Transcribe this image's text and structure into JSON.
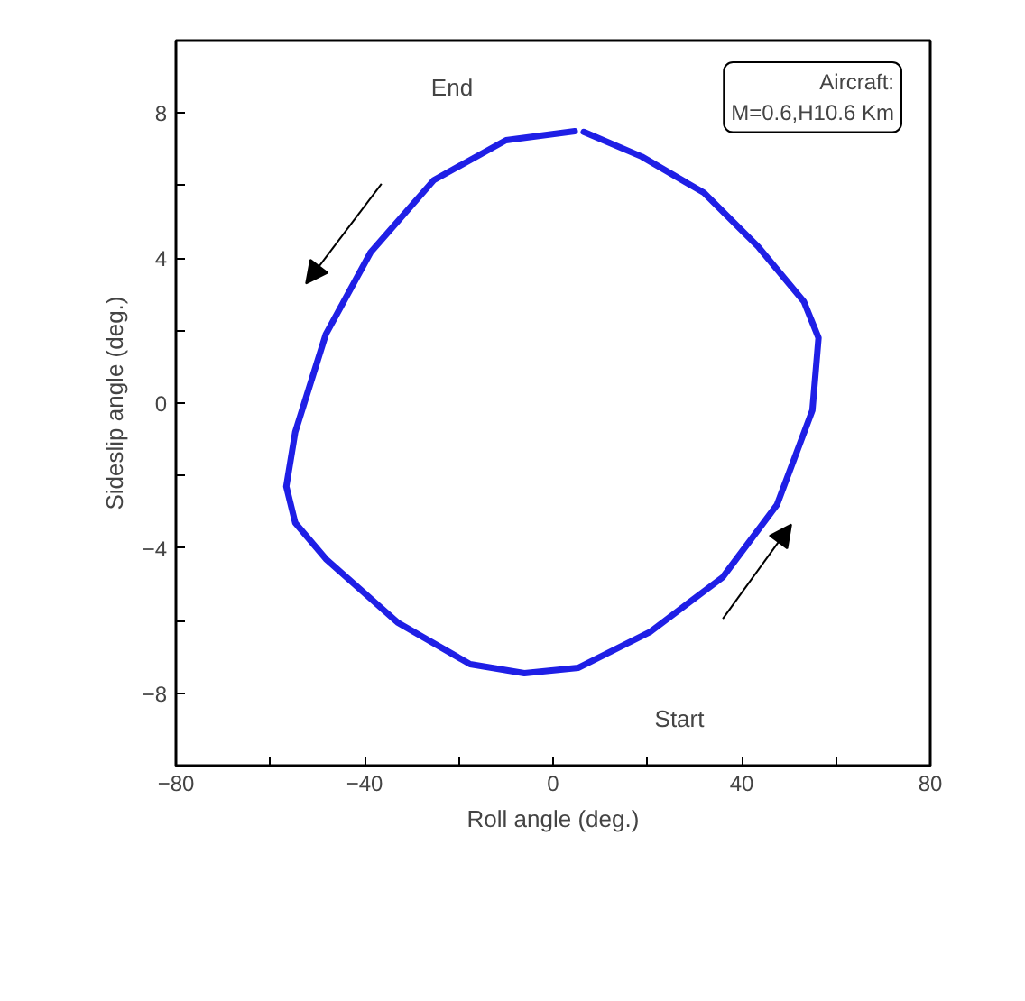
{
  "chart_data": {
    "type": "line",
    "xlabel": "Roll angle (deg.)",
    "ylabel": "Sideslip angle (deg.)",
    "series": [
      {
        "color": "#1f1fe6",
        "x": [
          4.6,
          -10,
          -25.3,
          -38.7,
          -48.2,
          -54.7,
          -56.6,
          -54.7,
          -48.2,
          -33,
          -17.6,
          -6.1,
          5.4,
          20.7,
          36,
          47.5,
          55,
          56.3,
          53.2,
          43.6,
          32,
          18.8,
          6.5
        ],
        "values": [
          7.5,
          7.25,
          6.15,
          4.16,
          1.9,
          -0.8,
          -2.3,
          -3.3,
          -4.3,
          -6.05,
          -7.2,
          -7.45,
          -7.3,
          -6.3,
          -4.8,
          -2.8,
          -0.2,
          1.8,
          2.8,
          4.3,
          5.8,
          6.8,
          7.48
        ]
      }
    ],
    "xlim": [
      -80,
      80
    ],
    "ylim": [
      -10,
      10
    ],
    "xticks": [
      -80,
      {
        "value": -60,
        "label": null
      },
      -40,
      {
        "value": -20,
        "label": null
      },
      0,
      {
        "value": 20,
        "label": null
      },
      40,
      {
        "value": 60,
        "label": null
      },
      80
    ],
    "yticks": [
      {
        "value": -10,
        "label": null
      },
      -8,
      {
        "value": -6,
        "label": null
      },
      -4,
      {
        "value": -2,
        "label": null
      },
      0,
      {
        "value": 2,
        "label": null
      },
      4,
      {
        "value": 6,
        "label": null
      },
      8,
      {
        "value": 10,
        "label": null
      }
    ],
    "annotations": [
      "End",
      "Start",
      "Aircraft:\nM=0.6,H10.6 Km"
    ],
    "grid": false,
    "marker": "none",
    "line_style": "solid"
  }
}
